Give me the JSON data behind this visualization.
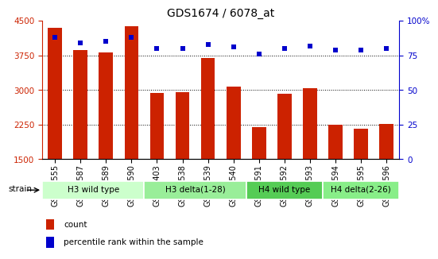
{
  "title": "GDS1674 / 6078_at",
  "samples": [
    "GSM94555",
    "GSM94587",
    "GSM94589",
    "GSM94590",
    "GSM94403",
    "GSM94538",
    "GSM94539",
    "GSM94540",
    "GSM94591",
    "GSM94592",
    "GSM94593",
    "GSM94594",
    "GSM94595",
    "GSM94596"
  ],
  "counts": [
    4350,
    3870,
    3810,
    4390,
    2940,
    2960,
    3690,
    3080,
    2190,
    2920,
    3040,
    2240,
    2170,
    2260
  ],
  "percentiles": [
    88,
    84,
    85,
    88,
    80,
    80,
    83,
    81,
    76,
    80,
    82,
    79,
    79,
    80
  ],
  "ylim_left": [
    1500,
    4500
  ],
  "ylim_right": [
    0,
    100
  ],
  "yticks_left": [
    1500,
    2250,
    3000,
    3750,
    4500
  ],
  "yticks_right": [
    0,
    25,
    50,
    75,
    100
  ],
  "grid_lines": [
    3750,
    3000,
    2250
  ],
  "bar_color": "#cc2200",
  "dot_color": "#0000cc",
  "groups": [
    {
      "label": "H3 wild type",
      "start": 0,
      "end": 4,
      "color": "#ccffcc"
    },
    {
      "label": "H3 delta(1-28)",
      "start": 4,
      "end": 8,
      "color": "#99ee99"
    },
    {
      "label": "H4 wild type",
      "start": 8,
      "end": 11,
      "color": "#55cc55"
    },
    {
      "label": "H4 delta(2-26)",
      "start": 11,
      "end": 14,
      "color": "#88ee88"
    }
  ],
  "strain_label": "strain",
  "legend_count_label": "count",
  "legend_pct_label": "percentile rank within the sample",
  "bar_width": 0.55,
  "tick_label_fontsize": 7.0,
  "title_fontsize": 10,
  "axis_fontsize": 7.5,
  "right_axis_color": "#0000cc",
  "left_axis_color": "#cc2200",
  "group_fontsize": 7.5,
  "legend_fontsize": 7.5
}
